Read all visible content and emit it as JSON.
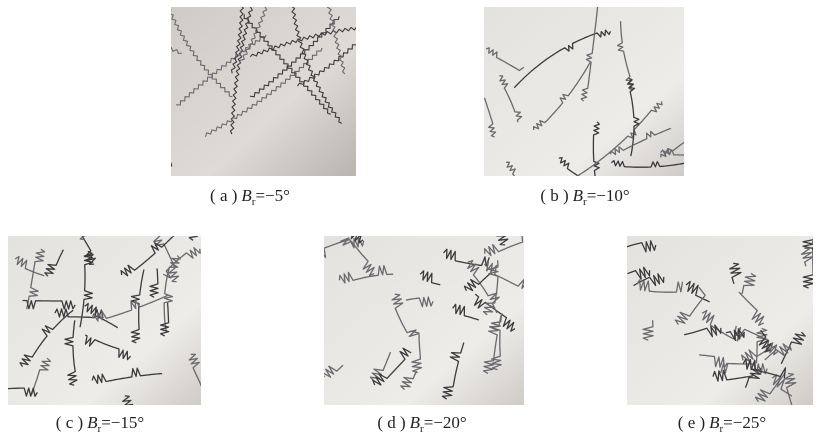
{
  "figure": {
    "panels": [
      {
        "label": "( a )",
        "symbol": "B",
        "subscript": "r",
        "value": "=−5°"
      },
      {
        "label": "( b )",
        "symbol": "B",
        "subscript": "r",
        "value": "=−10°"
      },
      {
        "label": "( c )",
        "symbol": "B",
        "subscript": "r",
        "value": "=−15°"
      },
      {
        "label": "( d )",
        "symbol": "B",
        "subscript": "r",
        "value": "=−20°"
      },
      {
        "label": "( e )",
        "symbol": "B",
        "subscript": "r",
        "value": "=−25°"
      }
    ]
  }
}
